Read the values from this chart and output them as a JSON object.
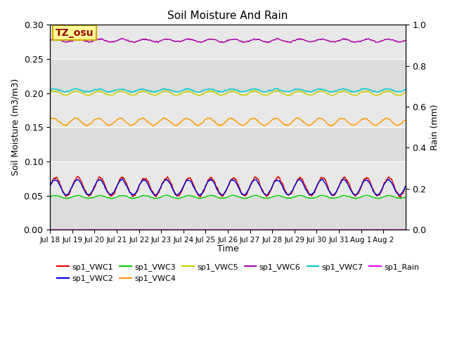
{
  "title": "Soil Moisture And Rain",
  "xlabel": "Time",
  "ylabel_left": "Soil Moisture (m3/m3)",
  "ylabel_right": "Rain (mm)",
  "ylim_left": [
    0.0,
    0.3
  ],
  "ylim_right": [
    0.0,
    1.0
  ],
  "yticks_left": [
    0.0,
    0.05,
    0.1,
    0.15,
    0.2,
    0.25,
    0.3
  ],
  "yticks_right": [
    0.0,
    0.2,
    0.4,
    0.6,
    0.8,
    1.0
  ],
  "xtick_labels": [
    "Jul 18",
    "Jul 19",
    "Jul 20",
    "Jul 21",
    "Jul 22",
    "Jul 23",
    "Jul 24",
    "Jul 25",
    "Jul 26",
    "Jul 27",
    "Jul 28",
    "Jul 29",
    "Jul 30",
    "Jul 31",
    "Aug 1",
    "Aug 2"
  ],
  "annotation_text": "TZ_osu",
  "annotation_bg": "#FFFF99",
  "annotation_border": "#CCAA00",
  "plot_bg": "#E8E8E8",
  "series_order": [
    "sp1_VWC1",
    "sp1_VWC2",
    "sp1_VWC3",
    "sp1_VWC4",
    "sp1_VWC5",
    "sp1_VWC6",
    "sp1_VWC7",
    "sp1_Rain"
  ],
  "series": {
    "sp1_VWC1": {
      "color": "#DD0000",
      "base": 0.063,
      "amp": 0.013,
      "period": 1.0,
      "phase": 0.0,
      "noise": 0.002,
      "lw": 1.0
    },
    "sp1_VWC2": {
      "color": "#0000DD",
      "base": 0.062,
      "amp": 0.011,
      "period": 1.0,
      "phase": 0.05,
      "noise": 0.001,
      "lw": 1.0
    },
    "sp1_VWC3": {
      "color": "#00CC00",
      "base": 0.048,
      "amp": 0.002,
      "period": 1.0,
      "phase": 0.0,
      "noise": 0.0005,
      "lw": 1.0
    },
    "sp1_VWC4": {
      "color": "#FF9900",
      "base": 0.158,
      "amp": 0.005,
      "period": 1.0,
      "phase": 0.2,
      "noise": 0.001,
      "lw": 1.0
    },
    "sp1_VWC5": {
      "color": "#CCCC00",
      "base": 0.2,
      "amp": 0.003,
      "period": 1.0,
      "phase": 0.1,
      "noise": 0.001,
      "lw": 1.0
    },
    "sp1_VWC6": {
      "color": "#AA00AA",
      "base": 0.277,
      "amp": 0.002,
      "period": 1.0,
      "phase": 0.0,
      "noise": 0.001,
      "lw": 1.0
    },
    "sp1_VWC7": {
      "color": "#00CCCC",
      "base": 0.204,
      "amp": 0.002,
      "period": 1.0,
      "phase": 0.15,
      "noise": 0.001,
      "lw": 1.0
    },
    "sp1_Rain": {
      "color": "#FF00FF",
      "base": 0.0,
      "amp": 0.0,
      "period": 1.0,
      "phase": 0.0,
      "noise": 0.0,
      "lw": 0.8
    }
  },
  "n_points": 1440
}
